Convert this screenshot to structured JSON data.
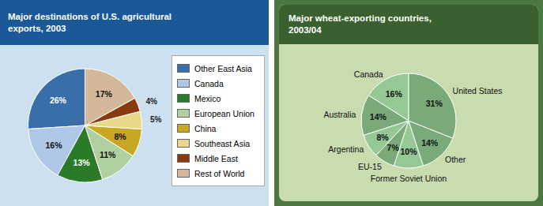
{
  "chart_data": [
    {
      "type": "pie",
      "title": "Major destinations of U.S. agricultural\nexports, 2003",
      "categories": [
        "Other East Asia",
        "Canada",
        "Mexico",
        "European Union",
        "China",
        "Southeast Asia",
        "Middle East",
        "Rest of World"
      ],
      "values": [
        26,
        16,
        13,
        11,
        8,
        5,
        4,
        17
      ],
      "value_labels": [
        "26%",
        "16%",
        "13%",
        "11%",
        "8%",
        "5%",
        "4%",
        "17%"
      ],
      "colors": [
        "#3a6ea8",
        "#b0c8e8",
        "#2a7a2a",
        "#b0d0a0",
        "#c8a820",
        "#e8d888",
        "#8b3a10",
        "#d2b898"
      ],
      "legend": "right"
    },
    {
      "type": "pie",
      "title": "Major wheat-exporting countries,\n2003/04",
      "categories": [
        "Canada",
        "Australia",
        "Argentina",
        "EU-15",
        "Former Soviet Union",
        "Other",
        "United States"
      ],
      "values": [
        16,
        14,
        8,
        7,
        10,
        14,
        31
      ],
      "value_labels": [
        "16%",
        "14%",
        "8%",
        "7%",
        "10%",
        "14%",
        "31%"
      ],
      "colors": [
        "#96c896",
        "#7aaa7a",
        "#96c896",
        "#7aaa7a",
        "#96c896",
        "#7aaa7a",
        "#7aaa7a"
      ]
    }
  ]
}
